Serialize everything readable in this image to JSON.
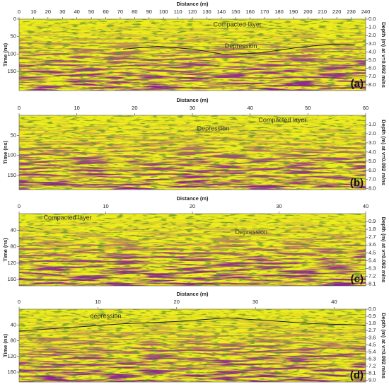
{
  "chart_data": [
    {
      "type": "radargram",
      "panel_label": "(a)",
      "xlabel": "Distance (m)",
      "ylabel": "Time (ns)",
      "y2label": "Depth (m) at v=0.092 m/ns",
      "annotations": [
        "Compacted layer",
        "Depression"
      ],
      "xlim": [
        0,
        240
      ],
      "xticks": [
        0,
        10,
        20,
        30,
        40,
        50,
        60,
        70,
        80,
        90,
        100,
        110,
        120,
        130,
        140,
        150,
        160,
        170,
        180,
        190,
        200,
        210,
        220,
        230,
        240
      ],
      "ylim": [
        0,
        205
      ],
      "yticks": [
        0,
        50,
        100,
        150
      ],
      "y2lim": [
        0,
        8.7
      ],
      "y2ticks": [
        {
          "value": 0,
          "label": "0.0"
        },
        {
          "value": 1,
          "label": "1.0"
        },
        {
          "value": 2,
          "label": "2.0"
        },
        {
          "value": 3,
          "label": "3.0"
        },
        {
          "value": 4,
          "label": "4.0"
        },
        {
          "value": 5,
          "label": "5.0"
        },
        {
          "value": 6,
          "label": "6.0"
        },
        {
          "value": 7,
          "label": "7.0"
        },
        {
          "value": 8,
          "label": "8.0"
        }
      ]
    },
    {
      "type": "radargram",
      "panel_label": "(b)",
      "xlabel": "Distance (m)",
      "ylabel": "Time (ns)",
      "y2label": "Depth (m) at v=0.092 m/ns",
      "annotations": [
        "Depression",
        "Compacted layer"
      ],
      "xlim": [
        0,
        60
      ],
      "xticks": [
        0,
        10,
        20,
        30,
        40,
        50,
        60
      ],
      "ylim": [
        0,
        185
      ],
      "yticks": [
        50,
        100,
        150
      ],
      "y2lim": [
        0,
        8.1
      ],
      "y2ticks": [
        {
          "value": 1,
          "label": "1.0"
        },
        {
          "value": 2,
          "label": "2.0"
        },
        {
          "value": 3,
          "label": "3.0"
        },
        {
          "value": 4,
          "label": "4.0"
        },
        {
          "value": 5,
          "label": "5.0"
        },
        {
          "value": 6,
          "label": "6.0"
        },
        {
          "value": 7,
          "label": "7.0"
        },
        {
          "value": 8,
          "label": "8.0"
        }
      ]
    },
    {
      "type": "radargram",
      "panel_label": "(c)",
      "xlabel": "Distance (m)",
      "ylabel": "Time (ns)",
      "y2label": "Depth (m) at v=0.092 m/ns",
      "annotations": [
        "Compacted layer",
        "Depression"
      ],
      "xlim": [
        0,
        40
      ],
      "xticks": [
        0,
        10,
        20,
        30,
        40
      ],
      "ylim": [
        0,
        175
      ],
      "yticks": [
        40,
        80,
        120,
        160
      ],
      "y2lim": [
        0,
        8.3
      ],
      "y2ticks": [
        0.9,
        1.8,
        2.7,
        3.6,
        4.5,
        5.4,
        6.3,
        7.2,
        8.1
      ]
    },
    {
      "type": "radargram",
      "panel_label": "(d)",
      "xlabel": "Distance (m)",
      "ylabel": "Time (ns)",
      "y2label": "Depth (m) at v=0.092 m/ns",
      "annotations": [
        "depression"
      ],
      "xlim": [
        0,
        44
      ],
      "xticks": [
        0,
        10,
        20,
        30,
        40
      ],
      "ylim": [
        0,
        185
      ],
      "yticks": [
        40,
        80,
        120,
        160
      ],
      "y2lim": [
        0,
        9.2
      ],
      "y2ticks": [
        {
          "value": 0,
          "label": "0.0"
        },
        0.9,
        1.8,
        2.7,
        3.6,
        4.5,
        5.4,
        6.3,
        7.2,
        8.1,
        {
          "value": 9,
          "label": "9.0"
        }
      ]
    }
  ]
}
